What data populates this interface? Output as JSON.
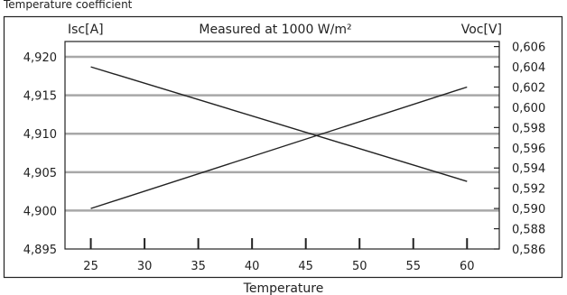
{
  "chart_data": {
    "type": "line",
    "title": "Temperature coefficient",
    "subtitle": "Measured at 1000 W/m²",
    "xlabel": "Temperature",
    "ylabel_left": "Isc[A]",
    "ylabel_right": "Voc[V]",
    "x_ticks": [
      25,
      30,
      35,
      40,
      45,
      50,
      55,
      60
    ],
    "y_left_ticks": [
      "4,895",
      "4,900",
      "4,905",
      "4,910",
      "4,915",
      "4,920"
    ],
    "y_right_ticks": [
      "0,586",
      "0,588",
      "0,590",
      "0,592",
      "0,594",
      "0,596",
      "0,598",
      "0,600",
      "0,602",
      "0,604",
      "0,606"
    ],
    "xlim": [
      22.6,
      63.0
    ],
    "ylim_left": [
      4.895,
      4.922
    ],
    "ylim_right": [
      0.586,
      0.6065
    ],
    "grid": "horizontal",
    "series": [
      {
        "axis": "left",
        "x": [
          25,
          60
        ],
        "y": [
          4.9187,
          4.9038
        ]
      },
      {
        "axis": "right",
        "x": [
          25,
          60
        ],
        "y": [
          0.59,
          0.602
        ]
      }
    ],
    "colors": {
      "line": "#222222",
      "grid": "#a8a8a8",
      "frame": "#222222"
    }
  }
}
